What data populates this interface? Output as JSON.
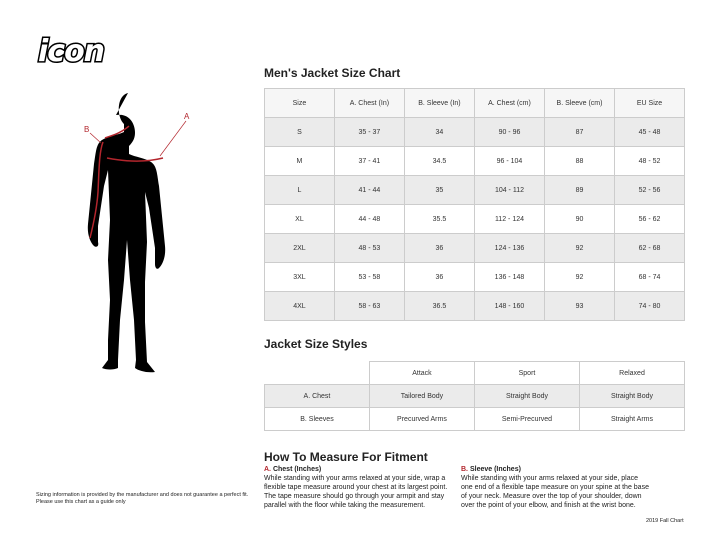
{
  "brand": {
    "logo_text": "icon"
  },
  "figure": {
    "label_a": "A",
    "label_b": "B",
    "accent": "#b3262d"
  },
  "size_chart": {
    "title": "Men's Jacket Size Chart",
    "headers": [
      "Size",
      "A. Chest (In)",
      "B. Sleeve (In)",
      "A. Chest (cm)",
      "B. Sleeve (cm)",
      "EU Size"
    ],
    "rows": [
      [
        "S",
        "35 - 37",
        "34",
        "90 - 96",
        "87",
        "45 - 48"
      ],
      [
        "M",
        "37 - 41",
        "34.5",
        "96 - 104",
        "88",
        "48 - 52"
      ],
      [
        "L",
        "41 - 44",
        "35",
        "104 - 112",
        "89",
        "52 - 56"
      ],
      [
        "XL",
        "44 - 48",
        "35.5",
        "112 - 124",
        "90",
        "56 - 62"
      ],
      [
        "2XL",
        "48 - 53",
        "36",
        "124 - 136",
        "92",
        "62 - 68"
      ],
      [
        "3XL",
        "53 - 58",
        "36",
        "136 - 148",
        "92",
        "68 - 74"
      ],
      [
        "4XL",
        "58 - 63",
        "36.5",
        "148 - 160",
        "93",
        "74 - 80"
      ]
    ]
  },
  "styles": {
    "title": "Jacket Size Styles",
    "headers": [
      "",
      "Attack",
      "Sport",
      "Relaxed"
    ],
    "rows": [
      [
        "A. Chest",
        "Tailored Body",
        "Straight Body",
        "Straight Body"
      ],
      [
        "B. Sleeves",
        "Precurved Arms",
        "Semi-Precurved",
        "Straight Arms"
      ]
    ]
  },
  "measure": {
    "title": "How To Measure For Fitment",
    "chest_letter": "A.",
    "chest_title": "Chest (Inches)",
    "chest_text": "While standing with your arms relaxed at your side, wrap a flexible tape measure around your chest at its largest point. The tape measure should go through your armpit and stay parallel with the floor while taking the measurement.",
    "sleeve_letter": "B.",
    "sleeve_title": "Sleeve (Inches)",
    "sleeve_text": "While standing with your arms relaxed at your side, place one end of a flexible tape measure on your spine at the base of your neck. Measure over the top of your shoulder, down over the point of your elbow, and finish at the wrist bone."
  },
  "disclaimer": "Sizing information is provided by the manufacturer and does not guarantee a perfect fit. Please use this chart as a guide only",
  "footer": "2019 Fall Chart"
}
